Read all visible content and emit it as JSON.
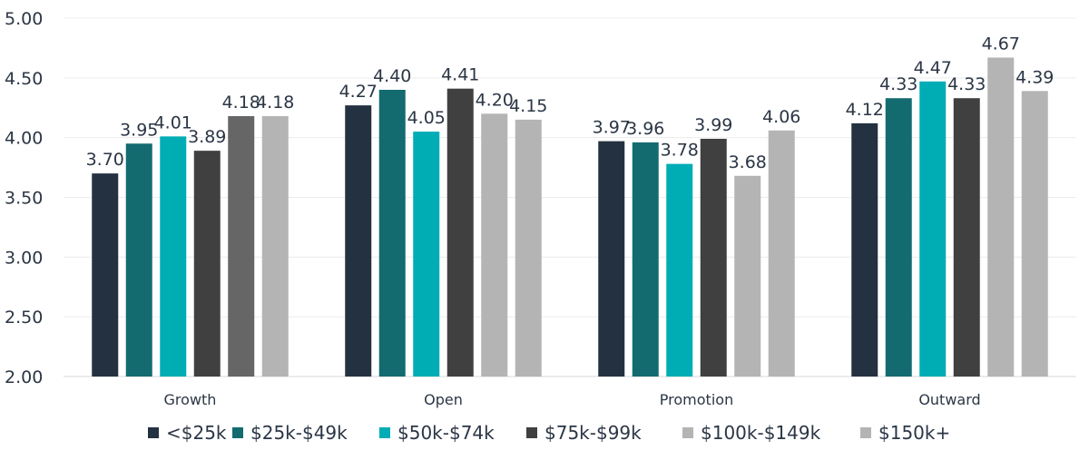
{
  "chart_data": {
    "type": "bar",
    "title": "",
    "xlabel": "",
    "ylabel": "",
    "ylim": [
      2.0,
      5.0
    ],
    "yticks": [
      "2.00",
      "2.50",
      "3.00",
      "3.50",
      "4.00",
      "4.50",
      "5.00"
    ],
    "grid": true,
    "legend_position": "bottom",
    "categories": [
      "Growth",
      "Open",
      "Promotion",
      "Outward"
    ],
    "series": [
      {
        "name": "<$25k",
        "color": "#243140",
        "values": [
          3.7,
          4.27,
          3.97,
          4.12
        ],
        "labels": [
          "3.70",
          "4.27",
          "3.97",
          "4.12"
        ]
      },
      {
        "name": "$25k-$49k",
        "color": "#136b70",
        "values": [
          3.95,
          4.4,
          3.96,
          4.33
        ],
        "labels": [
          "3.95",
          "4.40",
          "3.96",
          "4.33"
        ]
      },
      {
        "name": "$50k-$74k",
        "color": "#00adb5",
        "values": [
          4.01,
          4.05,
          3.78,
          4.47
        ],
        "labels": [
          "4.01",
          "4.05",
          "3.78",
          "4.47"
        ]
      },
      {
        "name": "$75k-$99k",
        "color": "#404040",
        "values": [
          3.89,
          4.41,
          3.99,
          4.33
        ],
        "labels": [
          "3.89",
          "4.41",
          "3.99",
          "4.33"
        ]
      },
      {
        "name": "$100k-$149k",
        "color": "#b4b4b4",
        "point_colors": [
          "#666666",
          "#b4b4b4",
          "#b4b4b4",
          "#b4b4b4"
        ],
        "values": [
          4.18,
          4.2,
          3.68,
          4.67
        ],
        "labels": [
          "4.18",
          "4.20",
          "3.68",
          "4.67"
        ]
      },
      {
        "name": "$150k+",
        "color": "#b4b4b4",
        "values": [
          4.18,
          4.15,
          4.06,
          4.39
        ],
        "labels": [
          "4.18",
          "4.15",
          "4.06",
          "4.39"
        ]
      }
    ]
  }
}
